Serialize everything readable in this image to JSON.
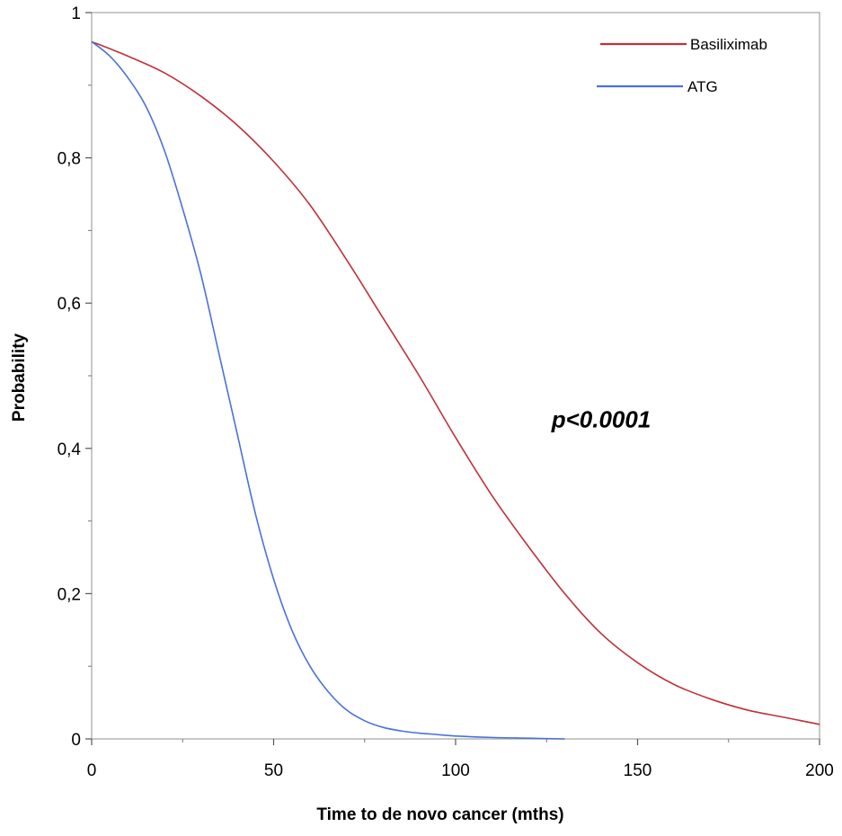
{
  "chart_data": {
    "type": "line",
    "title": "",
    "xlabel": "Time to de novo cancer (mths)",
    "ylabel": "Probability",
    "xlim": [
      0,
      200
    ],
    "ylim": [
      0,
      1
    ],
    "x_ticks": [
      0,
      50,
      100,
      150,
      200
    ],
    "x_tick_labels": [
      "0",
      "50",
      "100",
      "150",
      "200"
    ],
    "y_ticks": [
      0,
      0.2,
      0.4,
      0.6,
      0.8,
      1
    ],
    "y_tick_labels": [
      "0",
      "0,2",
      "0,4",
      "0,6",
      "0,8",
      "1"
    ],
    "grid": false,
    "legend_position": "top-right",
    "annotations": [
      {
        "text": "p<0.0001",
        "x": 140,
        "y": 0.44
      }
    ],
    "series": [
      {
        "name": "Basiliximab",
        "color": "#c0303a",
        "x": [
          0,
          10,
          20,
          30,
          40,
          50,
          60,
          70,
          80,
          90,
          100,
          110,
          120,
          130,
          140,
          150,
          160,
          170,
          180,
          190,
          200
        ],
        "y": [
          0.96,
          0.94,
          0.917,
          0.885,
          0.845,
          0.795,
          0.735,
          0.66,
          0.58,
          0.5,
          0.415,
          0.335,
          0.265,
          0.2,
          0.145,
          0.105,
          0.075,
          0.055,
          0.04,
          0.03,
          0.02
        ]
      },
      {
        "name": "ATG",
        "color": "#4a72d8",
        "x": [
          0,
          5,
          10,
          15,
          20,
          25,
          30,
          35,
          40,
          45,
          50,
          55,
          60,
          65,
          70,
          75,
          80,
          85,
          90,
          95,
          100,
          110,
          120,
          130
        ],
        "y": [
          0.96,
          0.94,
          0.91,
          0.87,
          0.81,
          0.73,
          0.64,
          0.53,
          0.42,
          0.31,
          0.22,
          0.15,
          0.1,
          0.065,
          0.04,
          0.025,
          0.016,
          0.011,
          0.008,
          0.006,
          0.004,
          0.002,
          0.001,
          0.0
        ]
      }
    ]
  }
}
